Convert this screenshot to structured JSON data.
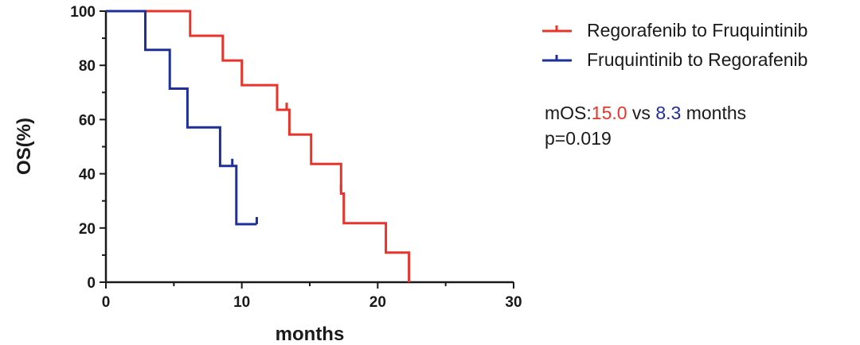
{
  "chart_data": {
    "type": "line",
    "step": true,
    "xlabel": "months",
    "ylabel": "OS(%)",
    "xlim": [
      0,
      30
    ],
    "ylim": [
      0,
      100
    ],
    "xticks": [
      "0",
      "10",
      "20",
      "30"
    ],
    "yticks": [
      "0",
      "20",
      "40",
      "60",
      "80",
      "100"
    ],
    "grid": false,
    "legend_position": "top-right",
    "series": [
      {
        "name": "Regorafenib to Fruquintinib",
        "color": "#e8342a",
        "points": [
          [
            0,
            100
          ],
          [
            6.2,
            100
          ],
          [
            6.2,
            90.9
          ],
          [
            8.6,
            90.9
          ],
          [
            8.6,
            81.8
          ],
          [
            10.0,
            81.8
          ],
          [
            10.0,
            72.7
          ],
          [
            12.6,
            72.7
          ],
          [
            12.6,
            63.6
          ],
          [
            13.5,
            63.6
          ],
          [
            13.5,
            54.5
          ],
          [
            15.1,
            54.5
          ],
          [
            15.1,
            43.6
          ],
          [
            17.3,
            43.6
          ],
          [
            17.3,
            32.7
          ],
          [
            17.5,
            32.7
          ],
          [
            17.5,
            21.8
          ],
          [
            20.6,
            21.8
          ],
          [
            20.6,
            10.9
          ],
          [
            22.3,
            10.9
          ],
          [
            22.3,
            0
          ]
        ],
        "censored": [
          [
            13.3,
            63.6
          ],
          [
            17.3,
            33.5
          ]
        ]
      },
      {
        "name": "Fruquintinib to Regorafenib",
        "color": "#1f2f9a",
        "points": [
          [
            0,
            100
          ],
          [
            2.9,
            100
          ],
          [
            2.9,
            85.7
          ],
          [
            4.7,
            85.7
          ],
          [
            4.7,
            71.4
          ],
          [
            6.0,
            71.4
          ],
          [
            6.0,
            57.1
          ],
          [
            8.4,
            57.1
          ],
          [
            8.4,
            42.9
          ],
          [
            9.6,
            42.9
          ],
          [
            9.6,
            21.4
          ],
          [
            11.1,
            21.4
          ]
        ],
        "censored": [
          [
            9.3,
            42.9
          ],
          [
            11.1,
            21.4
          ]
        ]
      }
    ],
    "annotation": {
      "line1_prefix": "mOS:",
      "value_red": "15.0",
      "middle": " vs ",
      "value_blue": "8.3",
      "suffix": " months",
      "line2": "p=0.019"
    }
  }
}
